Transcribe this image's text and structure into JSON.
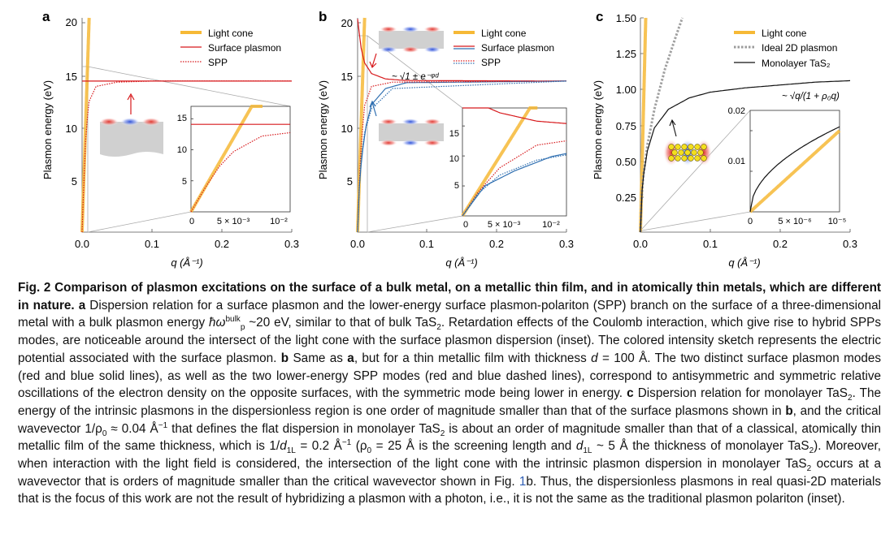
{
  "figure": {
    "panels": [
      {
        "letter": "a",
        "ylabel": "Plasmon energy (eV)",
        "xlabel": "q (Å⁻¹)",
        "y_ticks": [
          "20",
          "15",
          "10",
          "5"
        ],
        "x_ticks": [
          "0.0",
          "0.1",
          "0.2",
          "0.3"
        ],
        "legend": [
          "Light cone",
          "Surface plasmon",
          "SPP"
        ],
        "inset": {
          "y_ticks": [
            "15",
            "10",
            "5"
          ],
          "x_ticks": [
            "0",
            "5 × 10⁻³",
            "10⁻²"
          ]
        }
      },
      {
        "letter": "b",
        "ylabel": "Plasmon energy (eV)",
        "xlabel": "q (Å⁻¹)",
        "y_ticks": [
          "20",
          "15",
          "10",
          "5"
        ],
        "x_ticks": [
          "0.0",
          "0.1",
          "0.2",
          "0.3"
        ],
        "legend": [
          "Light cone",
          "Surface plasmon",
          "SPP"
        ],
        "annotation": "~ √1 ± e⁻ᵠᵈ",
        "inset": {
          "y_ticks": [
            "15",
            "10",
            "5"
          ],
          "x_ticks": [
            "0",
            "5 × 10⁻³",
            "10⁻²"
          ]
        }
      },
      {
        "letter": "c",
        "ylabel": "Plasmon energy (eV)",
        "xlabel": "q (Å⁻¹)",
        "y_ticks": [
          "1.50",
          "1.25",
          "1.00",
          "0.75",
          "0.50",
          "0.25"
        ],
        "x_ticks": [
          "0.0",
          "0.1",
          "0.2",
          "0.3"
        ],
        "legend": [
          "Light cone",
          "Ideal 2D plasmon",
          "Monolayer TaS₂"
        ],
        "annotation": "~ √q/(1 + ρ₀q)",
        "inset": {
          "y_ticks": [
            "0.02",
            "0.01"
          ],
          "x_ticks": [
            "0",
            "5 × 10⁻⁶",
            "10⁻⁵"
          ]
        }
      }
    ]
  },
  "chart_data": [
    {
      "type": "line",
      "panel": "a",
      "xlabel": "q (Å⁻¹)",
      "ylabel": "Plasmon energy (eV)",
      "xlim": [
        0,
        0.3
      ],
      "ylim": [
        0,
        20
      ],
      "series": [
        {
          "name": "Light cone",
          "color": "#f6b936",
          "x": [
            0,
            0.0101
          ],
          "y": [
            0,
            20
          ]
        },
        {
          "name": "Surface plasmon",
          "color": "#d7191c",
          "x": [
            0,
            0.3
          ],
          "y": [
            14.1,
            14.1
          ]
        },
        {
          "name": "SPP",
          "color": "#d7191c",
          "x": [
            0,
            0.002,
            0.004,
            0.006,
            0.01,
            0.02,
            0.05,
            0.1,
            0.3
          ],
          "y": [
            0,
            3.9,
            7.3,
            9.7,
            12.2,
            13.6,
            14.0,
            14.1,
            14.1
          ]
        }
      ],
      "inset": {
        "xlim": [
          0,
          0.014
        ],
        "ylim": [
          0,
          17
        ],
        "y_ticks": [
          5,
          10,
          15
        ]
      }
    },
    {
      "type": "line",
      "panel": "b",
      "xlabel": "q (Å⁻¹)",
      "ylabel": "Plasmon energy (eV)",
      "xlim": [
        0,
        0.3
      ],
      "ylim": [
        0,
        20
      ],
      "series": [
        {
          "name": "Light cone",
          "color": "#f6b936",
          "x": [
            0,
            0.0101
          ],
          "y": [
            0,
            20
          ]
        },
        {
          "name": "Surface plasmon (antisymmetric)",
          "color": "#d7191c",
          "x": [
            0,
            0.005,
            0.01,
            0.02,
            0.04,
            0.07,
            0.3
          ],
          "y": [
            19.9,
            17.2,
            15.8,
            14.8,
            14.3,
            14.15,
            14.1
          ]
        },
        {
          "name": "Surface plasmon (symmetric)",
          "color": "#2f6fb1",
          "x": [
            0,
            0.003,
            0.007,
            0.012,
            0.02,
            0.04,
            0.07,
            0.3
          ],
          "y": [
            0,
            5.0,
            7.5,
            9.9,
            11.9,
            13.4,
            13.95,
            14.1
          ]
        },
        {
          "name": "SPP (antisymmetric)",
          "color": "#d7191c",
          "x": [
            0,
            0.002,
            0.005,
            0.01,
            0.02,
            0.05,
            0.3
          ],
          "y": [
            0,
            3.8,
            8.0,
            11.8,
            13.6,
            14.0,
            14.1
          ]
        },
        {
          "name": "SPP (symmetric)",
          "color": "#2f6fb1",
          "x": [
            0,
            0.002,
            0.005,
            0.01,
            0.02,
            0.05,
            0.3
          ],
          "y": [
            0,
            3.6,
            6.8,
            9.3,
            11.5,
            13.4,
            14.1
          ]
        }
      ],
      "inset": {
        "xlim": [
          0,
          0.014
        ],
        "ylim": [
          0,
          18
        ],
        "y_ticks": [
          5,
          10,
          15
        ]
      }
    },
    {
      "type": "line",
      "panel": "c",
      "xlabel": "q (Å⁻¹)",
      "ylabel": "Plasmon energy (eV)",
      "xlim": [
        0,
        0.3
      ],
      "ylim": [
        0,
        1.5
      ],
      "series": [
        {
          "name": "Light cone",
          "color": "#f6b936",
          "x": [
            0,
            0.0076
          ],
          "y": [
            0,
            1.5
          ]
        },
        {
          "name": "Ideal 2D plasmon",
          "color": "#a0a0a0",
          "x": [
            0,
            0.001,
            0.004,
            0.01,
            0.02,
            0.035,
            0.05,
            0.06
          ],
          "y": [
            0,
            0.19,
            0.39,
            0.61,
            0.86,
            1.14,
            1.36,
            1.5
          ]
        },
        {
          "name": "Monolayer TaS₂",
          "color": "#111111",
          "x": [
            0,
            0.002,
            0.005,
            0.01,
            0.02,
            0.04,
            0.07,
            0.1,
            0.15,
            0.2,
            0.25,
            0.3
          ],
          "y": [
            0,
            0.27,
            0.42,
            0.57,
            0.73,
            0.86,
            0.94,
            0.98,
            1.01,
            1.03,
            1.05,
            1.06
          ]
        }
      ],
      "inset": {
        "xlim": [
          0,
          1e-05
        ],
        "ylim": [
          0,
          0.025
        ],
        "y_ticks": [
          0.01,
          0.02
        ]
      }
    }
  ],
  "caption": {
    "label": "Fig. 2",
    "title": "Comparison of plasmon excitations on the surface of a bulk metal, on a metallic thin film, and in atomically thin metals, which are different in nature.",
    "part_a_letter": "a",
    "part_a_1": "Dispersion relation for a surface plasmon and the lower-energy surface plasmon-polariton (SPP) branch on the surface of a three-dimensional metal with a bulk plasmon energy ",
    "part_a_symbol": "ħω",
    "part_a_sup": "bulk",
    "part_a_sub": "p",
    "part_a_2": " ~20 eV, similar to that of bulk TaS",
    "part_a_3": ". Retardation effects of the Coulomb interaction, which give rise to hybrid SPPs modes, are noticeable around the intersect of the light cone with the surface plasmon dispersion (inset). The colored intensity sketch represents the electric potential associated with the surface plasmon.",
    "part_b_letter": "b",
    "part_b_1": "Same as ",
    "part_b_ref": "a",
    "part_b_2": ", but for a thin metallic film with thickness ",
    "part_b_3": " = 100 Å. The two distinct surface plasmon modes (red and blue solid lines), as well as the two lower-energy SPP modes (red and blue dashed lines), correspond to antisymmetric and symmetric relative oscillations of the electron density on the opposite surfaces, with the symmetric mode being lower in energy.",
    "part_c_letter": "c",
    "part_c_1": "Dispersion relation for monolayer TaS",
    "part_c_2": ". The energy of the intrinsic plasmons in the dispersionless region is one order of magnitude smaller than that of the surface plasmons shown in ",
    "part_c_ref": "b",
    "part_c_3": ", and the critical wavevector 1/ρ",
    "part_c_4": " ≈ 0.04 Å",
    "part_c_5": " that defines the flat dispersion in monolayer TaS",
    "part_c_6": " is about an order of magnitude smaller than that of a classical, atomically thin metallic film of the same thickness, which is 1/",
    "part_c_7": " = 0.2 Å",
    "part_c_8": " (ρ",
    "part_c_9": " = 25 Å is the screening length and ",
    "part_c_10": " ~ 5 Å the thickness of monolayer TaS",
    "part_c_11": "). Moreover, when interaction with the light field is considered, the intersection of the light cone with the intrinsic plasmon dispersion in monolayer TaS",
    "part_c_12": " occurs at a wavevector that is orders of magnitude smaller than the critical wavevector shown in Fig. ",
    "part_c_figref": "1",
    "part_c_figref_b": "b",
    "part_c_13": ". Thus, the dispersionless plasmons in real quasi-2D materials that is the focus of this work are not the result of hybridizing a plasmon with a photon, i.e., it is not the same as the traditional plasmon polariton (inset).",
    "d_symbol": "d",
    "d_sub": "1L",
    "rho_sub": "0",
    "sub_two": "2",
    "inv": "−1"
  }
}
